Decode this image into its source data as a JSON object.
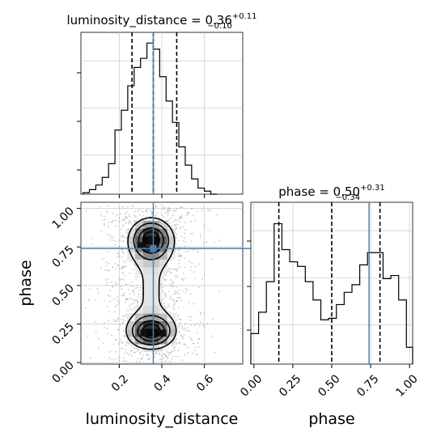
{
  "chart_data": [
    {
      "id": "hist_dist",
      "type": "histogram",
      "title": {
        "main": "luminosity_distance = 0.36",
        "sup": "+0.11",
        "sub": "−0.10"
      },
      "xlim": [
        0.02,
        0.78
      ],
      "ylim": [
        0,
        1
      ],
      "bins": {
        "edges": [
          0.03,
          0.06,
          0.09,
          0.12,
          0.15,
          0.18,
          0.21,
          0.24,
          0.27,
          0.3,
          0.33,
          0.36,
          0.39,
          0.42,
          0.45,
          0.48,
          0.51,
          0.54,
          0.57,
          0.6,
          0.63,
          0.66
        ],
        "heights": [
          0.01,
          0.03,
          0.06,
          0.11,
          0.2,
          0.42,
          0.55,
          0.71,
          0.83,
          0.89,
          0.99,
          0.95,
          0.77,
          0.61,
          0.47,
          0.31,
          0.19,
          0.1,
          0.04,
          0.02,
          0.0
        ]
      },
      "quantiles": [
        0.26,
        0.36,
        0.47
      ],
      "truth": 0.36,
      "grid": true
    },
    {
      "id": "hist_phase",
      "type": "histogram",
      "title": {
        "main": "phase = 0.50",
        "sup": "+0.31",
        "sub": "−0.34"
      },
      "xlim": [
        -0.02,
        1.02
      ],
      "xticks": [
        "0.00",
        "0.25",
        "0.50",
        "0.75",
        "1.00"
      ],
      "xtick_values": [
        0,
        0.25,
        0.5,
        0.75,
        1.0
      ],
      "xlabel": "phase",
      "ylim": [
        0,
        1
      ],
      "bins": {
        "edges": [
          -0.02,
          0.03,
          0.08,
          0.13,
          0.18,
          0.23,
          0.28,
          0.33,
          0.38,
          0.43,
          0.48,
          0.53,
          0.58,
          0.63,
          0.68,
          0.73,
          0.78,
          0.83,
          0.88,
          0.93,
          0.98,
          1.02
        ],
        "heights": [
          0.2,
          0.34,
          0.54,
          0.92,
          0.75,
          0.67,
          0.64,
          0.54,
          0.42,
          0.29,
          0.3,
          0.39,
          0.47,
          0.52,
          0.65,
          0.73,
          0.73,
          0.56,
          0.58,
          0.42,
          0.11
        ]
      },
      "quantiles": [
        0.16,
        0.5,
        0.81
      ],
      "truth": 0.74,
      "grid": true
    },
    {
      "id": "joint",
      "type": "contour",
      "xlabel": "luminosity_distance",
      "ylabel": "phase",
      "xlim": [
        0.02,
        0.78
      ],
      "ylim": [
        -0.01,
        1.04
      ],
      "xticks": [
        "0.2",
        "0.4",
        "0.6"
      ],
      "xtick_values": [
        0.2,
        0.4,
        0.6
      ],
      "yticks": [
        "0.00",
        "0.25",
        "0.50",
        "0.75",
        "1.00"
      ],
      "ytick_values": [
        0,
        0.25,
        0.5,
        0.75,
        1.0
      ],
      "truth": {
        "x": 0.36,
        "y": 0.74
      },
      "marker": {
        "x": 0.36,
        "y": 0.74
      },
      "modes": [
        {
          "x": 0.35,
          "y": 0.8,
          "sx": 0.055,
          "sy": 0.075,
          "w": 1.0
        },
        {
          "x": 0.35,
          "y": 0.2,
          "sx": 0.06,
          "sy": 0.06,
          "w": 1.0
        }
      ],
      "colors": {
        "truth": "#4682b4",
        "line": "#000000",
        "grid": "#c0c0c0"
      },
      "grid": true
    }
  ]
}
